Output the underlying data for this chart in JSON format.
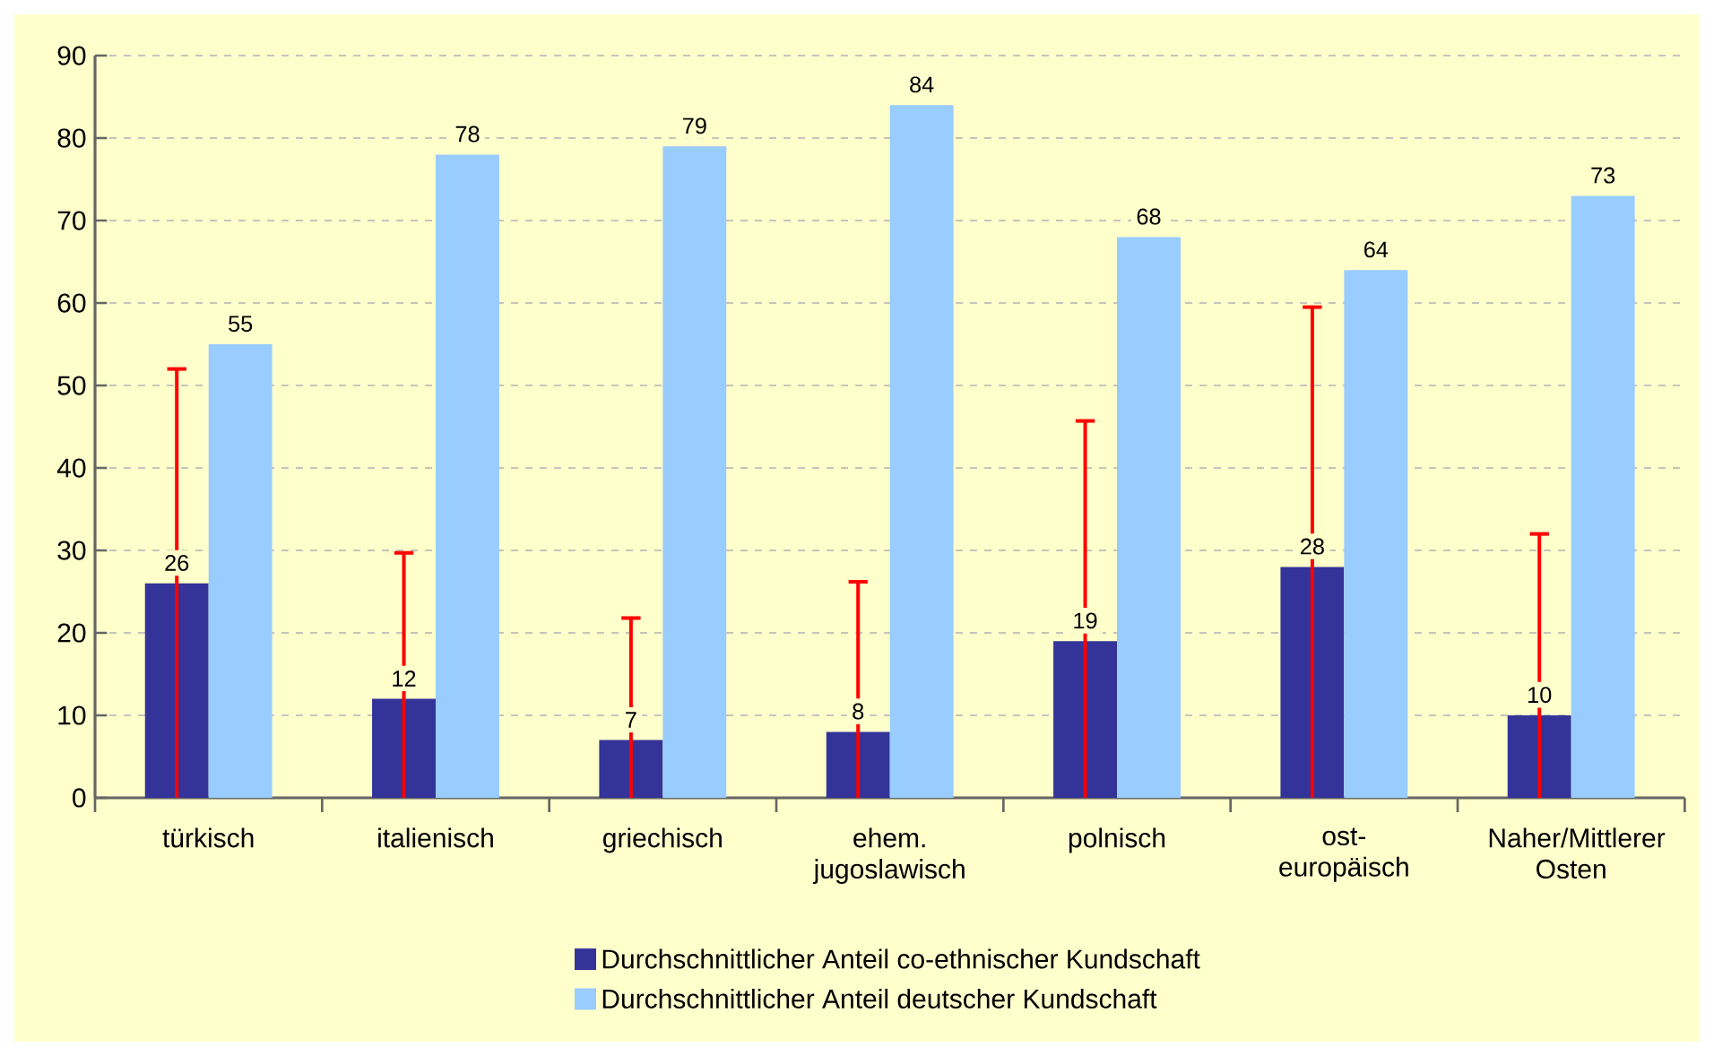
{
  "chart_data": {
    "type": "bar",
    "categories": [
      "türkisch",
      "italienisch",
      "griechisch",
      "ehem. jugoslawisch",
      "polnisch",
      "ost-europäisch",
      "Naher/Mittlerer Osten"
    ],
    "series": [
      {
        "name": "Durchschnittlicher Anteil  co-ethnischer Kundschaft",
        "color": "#333399",
        "values": [
          26,
          12,
          7,
          8,
          19,
          28,
          10
        ],
        "errors": [
          [
            0,
            52
          ],
          [
            0,
            29.7
          ],
          [
            0,
            21.8
          ],
          [
            0,
            26.2
          ],
          [
            0,
            45.7
          ],
          [
            0,
            59.5
          ],
          [
            0,
            32
          ]
        ]
      },
      {
        "name": "Durchschnittlicher Anteil deutscher Kundschaft",
        "color": "#99ccff",
        "values": [
          55,
          78,
          79,
          84,
          68,
          64,
          73
        ]
      }
    ],
    "ylim": [
      0,
      90
    ],
    "yticks": [
      0,
      10,
      20,
      30,
      40,
      50,
      60,
      70,
      80,
      90
    ],
    "grid": "y",
    "legend": "bottom",
    "data_labels": true
  }
}
